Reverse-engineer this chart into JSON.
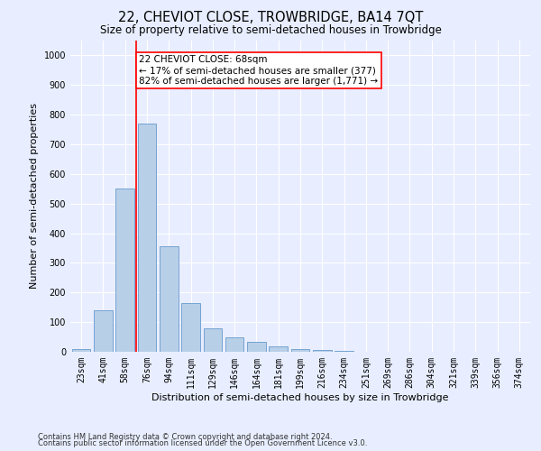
{
  "title": "22, CHEVIOT CLOSE, TROWBRIDGE, BA14 7QT",
  "subtitle": "Size of property relative to semi-detached houses in Trowbridge",
  "xlabel": "Distribution of semi-detached houses by size in Trowbridge",
  "ylabel": "Number of semi-detached properties",
  "footer_line1": "Contains HM Land Registry data © Crown copyright and database right 2024.",
  "footer_line2": "Contains public sector information licensed under the Open Government Licence v3.0.",
  "categories": [
    "23sqm",
    "41sqm",
    "58sqm",
    "76sqm",
    "94sqm",
    "111sqm",
    "129sqm",
    "146sqm",
    "164sqm",
    "181sqm",
    "199sqm",
    "216sqm",
    "234sqm",
    "251sqm",
    "269sqm",
    "286sqm",
    "304sqm",
    "321sqm",
    "339sqm",
    "356sqm",
    "374sqm"
  ],
  "values": [
    8,
    140,
    550,
    770,
    355,
    165,
    80,
    50,
    32,
    18,
    10,
    5,
    3,
    0,
    0,
    0,
    0,
    0,
    0,
    0,
    0
  ],
  "bar_color": "#b8cfe8",
  "bar_edge_color": "#6699cc",
  "vline_x": 2.5,
  "vline_color": "red",
  "annotation_line1": "22 CHEVIOT CLOSE: 68sqm",
  "annotation_line2": "← 17% of semi-detached houses are smaller (377)",
  "annotation_line3": "82% of semi-detached houses are larger (1,771) →",
  "annotation_box_color": "white",
  "annotation_box_edge": "red",
  "ylim": [
    0,
    1050
  ],
  "yticks": [
    0,
    100,
    200,
    300,
    400,
    500,
    600,
    700,
    800,
    900,
    1000
  ],
  "background_color": "#e8eeff",
  "grid_color": "white",
  "title_fontsize": 10.5,
  "subtitle_fontsize": 8.5,
  "axis_label_fontsize": 8,
  "tick_fontsize": 7,
  "footer_fontsize": 6,
  "annotation_fontsize": 7.5
}
